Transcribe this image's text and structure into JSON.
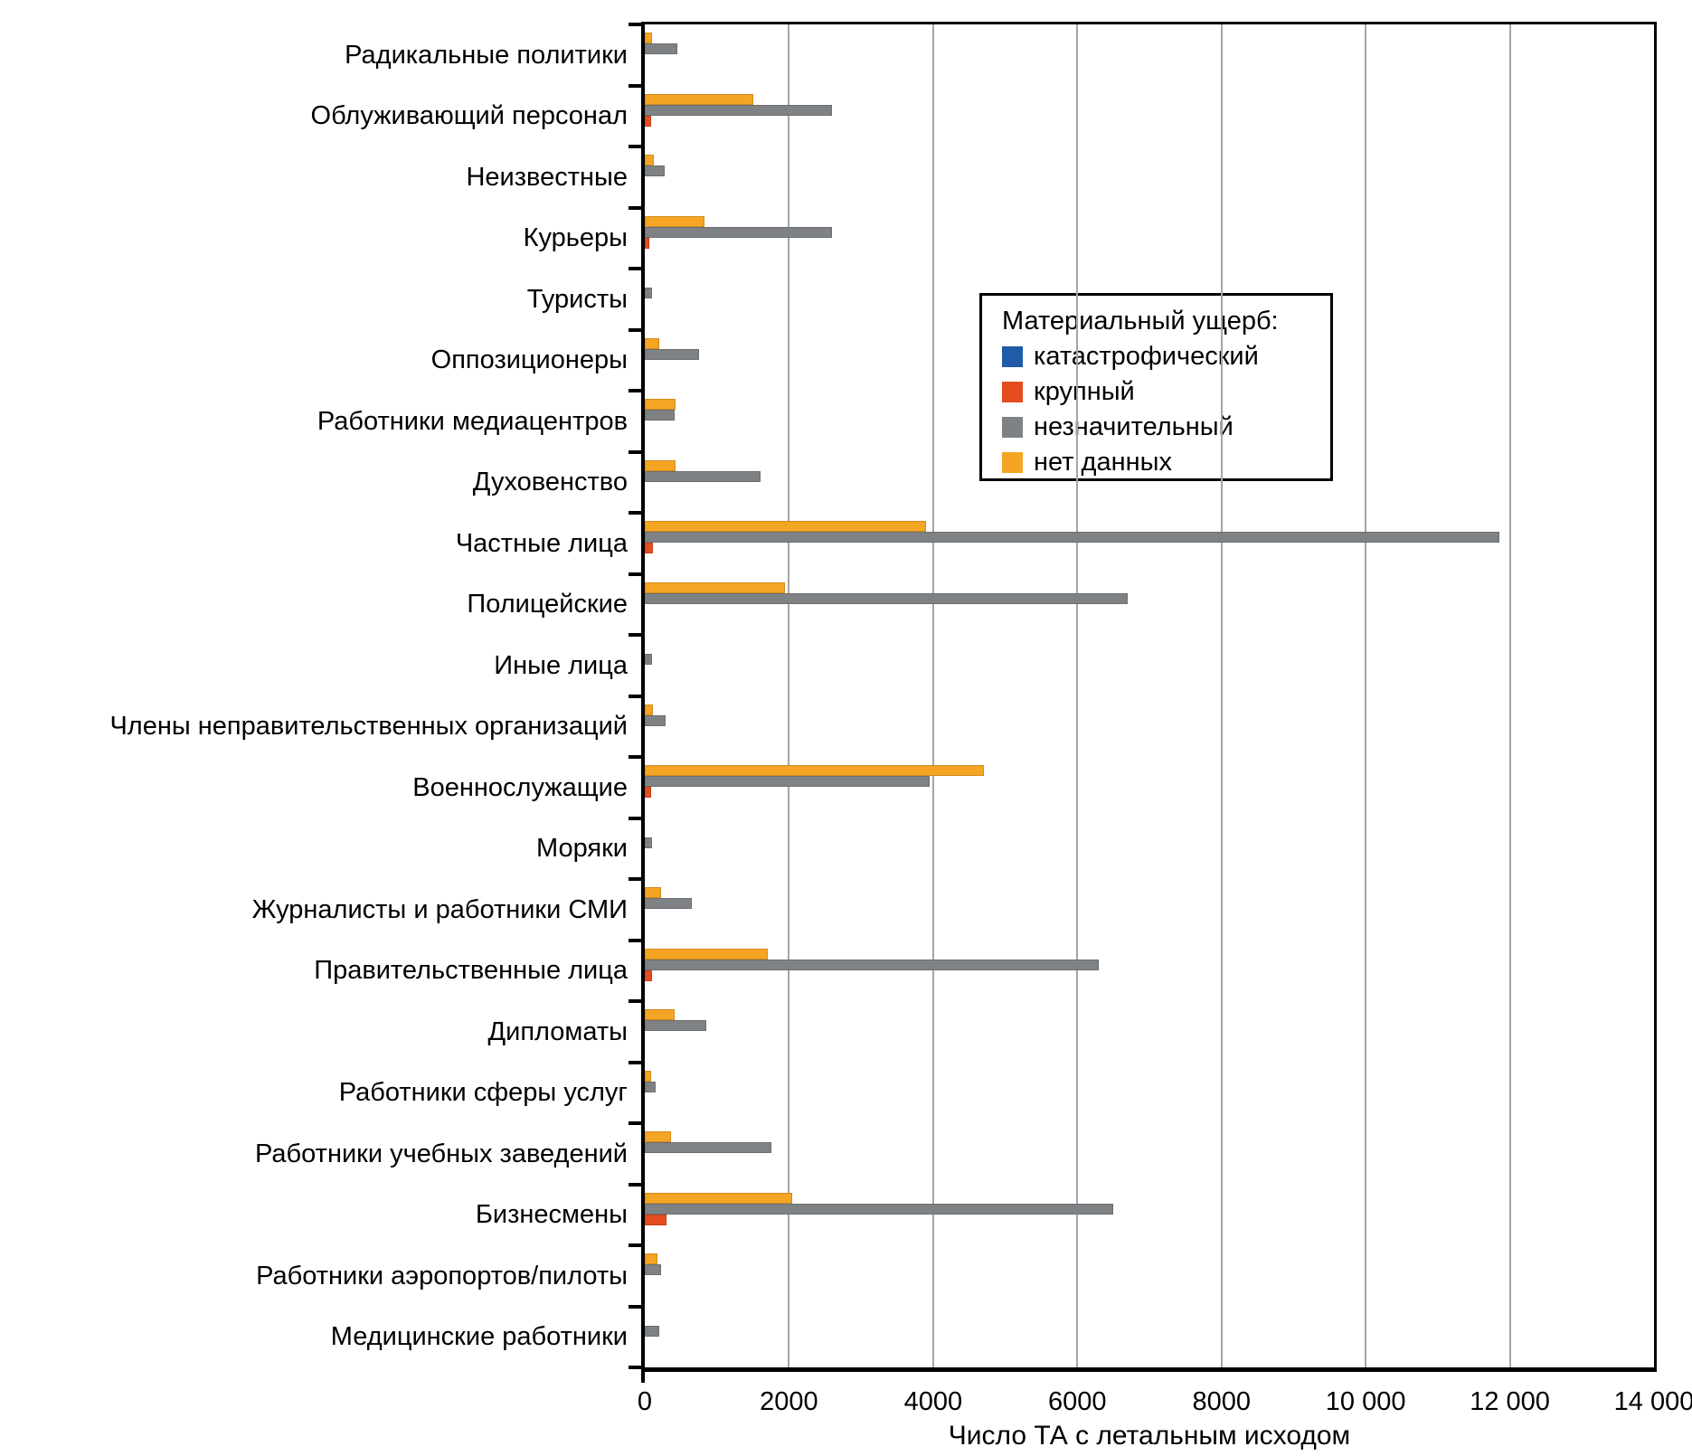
{
  "chart_data": {
    "type": "bar",
    "orientation": "horizontal",
    "xlabel": "Число ТА с летальным исходом",
    "legend_title": "Материальный ущерб:",
    "legend_position": "upper right inside plot",
    "grid": "vertical major gridlines",
    "xlim": [
      0,
      14000
    ],
    "xticks": [
      0,
      2000,
      4000,
      6000,
      8000,
      10000,
      12000,
      14000
    ],
    "xtick_labels": [
      "0",
      "2000",
      "4000",
      "6000",
      "8000",
      "10 000",
      "12 000",
      "14 000"
    ],
    "categories": [
      "Радикальные политики",
      "Облуживающий персонал",
      "Неизвестные",
      "Курьеры",
      "Туристы",
      "Оппозиционеры",
      "Работники медиацентров",
      "Духовенство",
      "Частные лица",
      "Полицейские",
      "Иные лица",
      "Члены неправительственных организаций",
      "Военнослужащие",
      "Моряки",
      "Журналисты и работники СМИ",
      "Правительственные лица",
      "Дипломаты",
      "Работники сферы услуг",
      "Работники учебных заведений",
      "Бизнесмены",
      "Работники аэропортов/пилоты",
      "Медицинские работники"
    ],
    "series": [
      {
        "name": "катастрофический",
        "color": "#1F5BA8",
        "values": [
          0,
          0,
          0,
          0,
          0,
          0,
          0,
          0,
          0,
          0,
          0,
          0,
          0,
          0,
          0,
          0,
          0,
          0,
          0,
          0,
          0,
          0
        ]
      },
      {
        "name": "крупный",
        "color": "#E54D20",
        "values": [
          0,
          90,
          0,
          60,
          0,
          0,
          0,
          0,
          110,
          0,
          0,
          0,
          90,
          0,
          0,
          100,
          0,
          0,
          0,
          300,
          0,
          0
        ]
      },
      {
        "name": "незначительный",
        "color": "#7F8285",
        "values": [
          450,
          2600,
          280,
          2600,
          100,
          750,
          420,
          1600,
          11850,
          6700,
          100,
          290,
          3950,
          100,
          650,
          6300,
          850,
          150,
          1750,
          6500,
          220,
          200
        ]
      },
      {
        "name": "нет данных",
        "color": "#F5A524",
        "values": [
          100,
          1500,
          120,
          830,
          0,
          200,
          430,
          430,
          3900,
          1950,
          0,
          110,
          4700,
          0,
          220,
          1700,
          420,
          90,
          370,
          2050,
          170,
          0
        ]
      }
    ]
  }
}
